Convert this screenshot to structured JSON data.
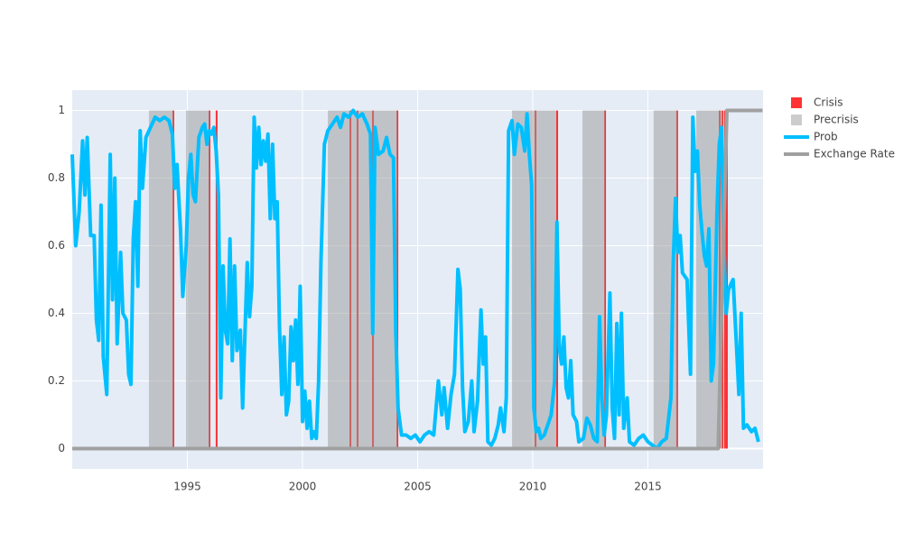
{
  "chart_data": {
    "type": "line",
    "xlim": [
      1990,
      2020
    ],
    "ylim": [
      -0.06,
      1.06
    ],
    "xticks": [
      1995,
      2000,
      2005,
      2010,
      2015
    ],
    "yticks": [
      0,
      0.2,
      0.4,
      0.6,
      0.8,
      1
    ],
    "grid": true,
    "legend": "right",
    "series": [
      {
        "name": "Crisis",
        "type": "bar",
        "color": "#ff0000",
        "opacity": 0.8,
        "x": [
          1994.39,
          1995.96,
          1996.27,
          2002.08,
          2002.39,
          2003.06,
          2004.12,
          2010.12,
          2011.06,
          2013.14,
          2016.27,
          2018.12,
          2018.24,
          2018.35,
          2018.43
        ],
        "values": [
          1,
          1,
          1,
          1,
          1,
          1,
          1,
          1,
          1,
          1,
          1,
          1,
          1,
          1,
          1
        ]
      },
      {
        "name": "Precrisis",
        "type": "span",
        "color": "#999999",
        "opacity": 0.5,
        "spans": [
          [
            1993.33,
            1994.39
          ],
          [
            1994.94,
            1995.96
          ],
          [
            2001.1,
            2004.12
          ],
          [
            2009.1,
            2011.02
          ],
          [
            2012.16,
            2013.14
          ],
          [
            2015.25,
            2016.27
          ],
          [
            2017.1,
            2018.24
          ]
        ],
        "values": [
          1,
          1,
          1,
          1,
          1,
          1,
          1
        ]
      },
      {
        "name": "Prob",
        "type": "line",
        "color": "#00bfff",
        "x": [
          1990,
          1990.15,
          1990.3,
          1990.45,
          1990.55,
          1990.65,
          1990.8,
          1990.95,
          1991.05,
          1991.15,
          1991.25,
          1991.35,
          1991.5,
          1991.65,
          1991.75,
          1991.85,
          1991.95,
          1992.1,
          1992.2,
          1992.35,
          1992.45,
          1992.55,
          1992.65,
          1992.75,
          1992.85,
          1992.95,
          1993.05,
          1993.2,
          1993.4,
          1993.6,
          1993.8,
          1994,
          1994.2,
          1994.35,
          1994.45,
          1994.55,
          1994.7,
          1994.8,
          1994.95,
          1995.05,
          1995.15,
          1995.25,
          1995.35,
          1995.5,
          1995.65,
          1995.75,
          1995.85,
          1995.95,
          1996.05,
          1996.15,
          1996.25,
          1996.35,
          1996.45,
          1996.55,
          1996.65,
          1996.75,
          1996.85,
          1996.95,
          1997.05,
          1997.15,
          1997.3,
          1997.4,
          1997.5,
          1997.6,
          1997.7,
          1997.8,
          1997.9,
          1998,
          1998.1,
          1998.2,
          1998.3,
          1998.4,
          1998.5,
          1998.6,
          1998.7,
          1998.8,
          1998.9,
          1999,
          1999.1,
          1999.2,
          1999.3,
          1999.4,
          1999.5,
          1999.6,
          1999.7,
          1999.8,
          1999.9,
          2000,
          2000.1,
          2000.2,
          2000.3,
          2000.4,
          2000.5,
          2000.6,
          2000.7,
          2000.8,
          2000.95,
          2001.1,
          2001.3,
          2001.5,
          2001.65,
          2001.8,
          2002,
          2002.2,
          2002.4,
          2002.6,
          2002.8,
          2002.95,
          2003.05,
          2003.15,
          2003.3,
          2003.5,
          2003.65,
          2003.8,
          2003.95,
          2004.05,
          2004.15,
          2004.3,
          2004.5,
          2004.7,
          2004.9,
          2005.1,
          2005.3,
          2005.5,
          2005.7,
          2005.9,
          2006.05,
          2006.15,
          2006.3,
          2006.45,
          2006.6,
          2006.75,
          2006.85,
          2006.95,
          2007.05,
          2007.2,
          2007.35,
          2007.45,
          2007.6,
          2007.75,
          2007.85,
          2007.95,
          2008.05,
          2008.2,
          2008.35,
          2008.5,
          2008.6,
          2008.75,
          2008.85,
          2008.95,
          2009.1,
          2009.2,
          2009.35,
          2009.5,
          2009.65,
          2009.75,
          2009.85,
          2009.95,
          2010.05,
          2010.15,
          2010.25,
          2010.35,
          2010.5,
          2010.65,
          2010.8,
          2010.95,
          2011.05,
          2011.15,
          2011.25,
          2011.35,
          2011.45,
          2011.55,
          2011.65,
          2011.75,
          2011.9,
          2012,
          2012.2,
          2012.35,
          2012.5,
          2012.65,
          2012.8,
          2012.9,
          2013,
          2013.1,
          2013.2,
          2013.35,
          2013.45,
          2013.55,
          2013.65,
          2013.75,
          2013.85,
          2013.95,
          2014.1,
          2014.2,
          2014.4,
          2014.6,
          2014.8,
          2015,
          2015.2,
          2015.4,
          2015.6,
          2015.8,
          2016,
          2016.1,
          2016.2,
          2016.3,
          2016.4,
          2016.5,
          2016.7,
          2016.85,
          2016.95,
          2017.05,
          2017.15,
          2017.25,
          2017.35,
          2017.45,
          2017.55,
          2017.65,
          2017.75,
          2017.85,
          2018,
          2018.1,
          2018.2,
          2018.3,
          2018.4,
          2018.5,
          2018.7,
          2018.85,
          2018.95,
          2019.05,
          2019.15,
          2019.3,
          2019.5,
          2019.65,
          2019.8
        ],
        "values": [
          0.87,
          0.6,
          0.7,
          0.91,
          0.75,
          0.92,
          0.63,
          0.63,
          0.38,
          0.32,
          0.72,
          0.27,
          0.16,
          0.87,
          0.44,
          0.8,
          0.31,
          0.58,
          0.4,
          0.38,
          0.22,
          0.19,
          0.62,
          0.73,
          0.48,
          0.94,
          0.77,
          0.92,
          0.95,
          0.98,
          0.97,
          0.98,
          0.97,
          0.93,
          0.77,
          0.84,
          0.65,
          0.45,
          0.6,
          0.8,
          0.87,
          0.75,
          0.73,
          0.92,
          0.95,
          0.96,
          0.9,
          0.94,
          0.93,
          0.95,
          0.88,
          0.75,
          0.15,
          0.54,
          0.35,
          0.31,
          0.62,
          0.26,
          0.54,
          0.29,
          0.35,
          0.12,
          0.34,
          0.55,
          0.39,
          0.48,
          0.98,
          0.83,
          0.95,
          0.84,
          0.91,
          0.85,
          0.93,
          0.68,
          0.9,
          0.68,
          0.73,
          0.36,
          0.16,
          0.33,
          0.1,
          0.14,
          0.36,
          0.26,
          0.38,
          0.19,
          0.48,
          0.08,
          0.17,
          0.06,
          0.14,
          0.03,
          0.05,
          0.03,
          0.2,
          0.55,
          0.9,
          0.94,
          0.96,
          0.98,
          0.95,
          0.99,
          0.98,
          1,
          0.98,
          0.99,
          0.96,
          0.93,
          0.34,
          0.95,
          0.87,
          0.88,
          0.92,
          0.87,
          0.86,
          0.35,
          0.12,
          0.04,
          0.04,
          0.03,
          0.04,
          0.02,
          0.04,
          0.05,
          0.04,
          0.2,
          0.1,
          0.18,
          0.06,
          0.16,
          0.22,
          0.53,
          0.47,
          0.18,
          0.05,
          0.08,
          0.2,
          0.05,
          0.14,
          0.41,
          0.25,
          0.33,
          0.02,
          0.01,
          0.03,
          0.07,
          0.12,
          0.05,
          0.15,
          0.94,
          0.97,
          0.87,
          0.96,
          0.95,
          0.88,
          0.99,
          0.87,
          0.78,
          0.12,
          0.05,
          0.06,
          0.03,
          0.04,
          0.07,
          0.1,
          0.2,
          0.67,
          0.3,
          0.25,
          0.33,
          0.18,
          0.15,
          0.26,
          0.1,
          0.08,
          0.02,
          0.03,
          0.09,
          0.07,
          0.03,
          0.02,
          0.39,
          0.15,
          0.04,
          0.1,
          0.46,
          0.12,
          0.03,
          0.37,
          0.1,
          0.4,
          0.06,
          0.15,
          0.02,
          0.01,
          0.03,
          0.04,
          0.02,
          0.01,
          0,
          0.02,
          0.03,
          0.15,
          0.55,
          0.74,
          0.58,
          0.63,
          0.52,
          0.5,
          0.22,
          0.98,
          0.82,
          0.88,
          0.72,
          0.64,
          0.57,
          0.54,
          0.65,
          0.2,
          0.25,
          0.7,
          0.9,
          0.95,
          0.6,
          0.4,
          0.47,
          0.5,
          0.3,
          0.16,
          0.4,
          0.06,
          0.07,
          0.05,
          0.06,
          0.02
        ]
      },
      {
        "name": "Exchange Rate",
        "type": "line",
        "color": "#a0a0a0",
        "x": [
          1990,
          2018.05,
          2018.43,
          2019.98
        ],
        "values": [
          0,
          0,
          1,
          1
        ]
      }
    ]
  }
}
